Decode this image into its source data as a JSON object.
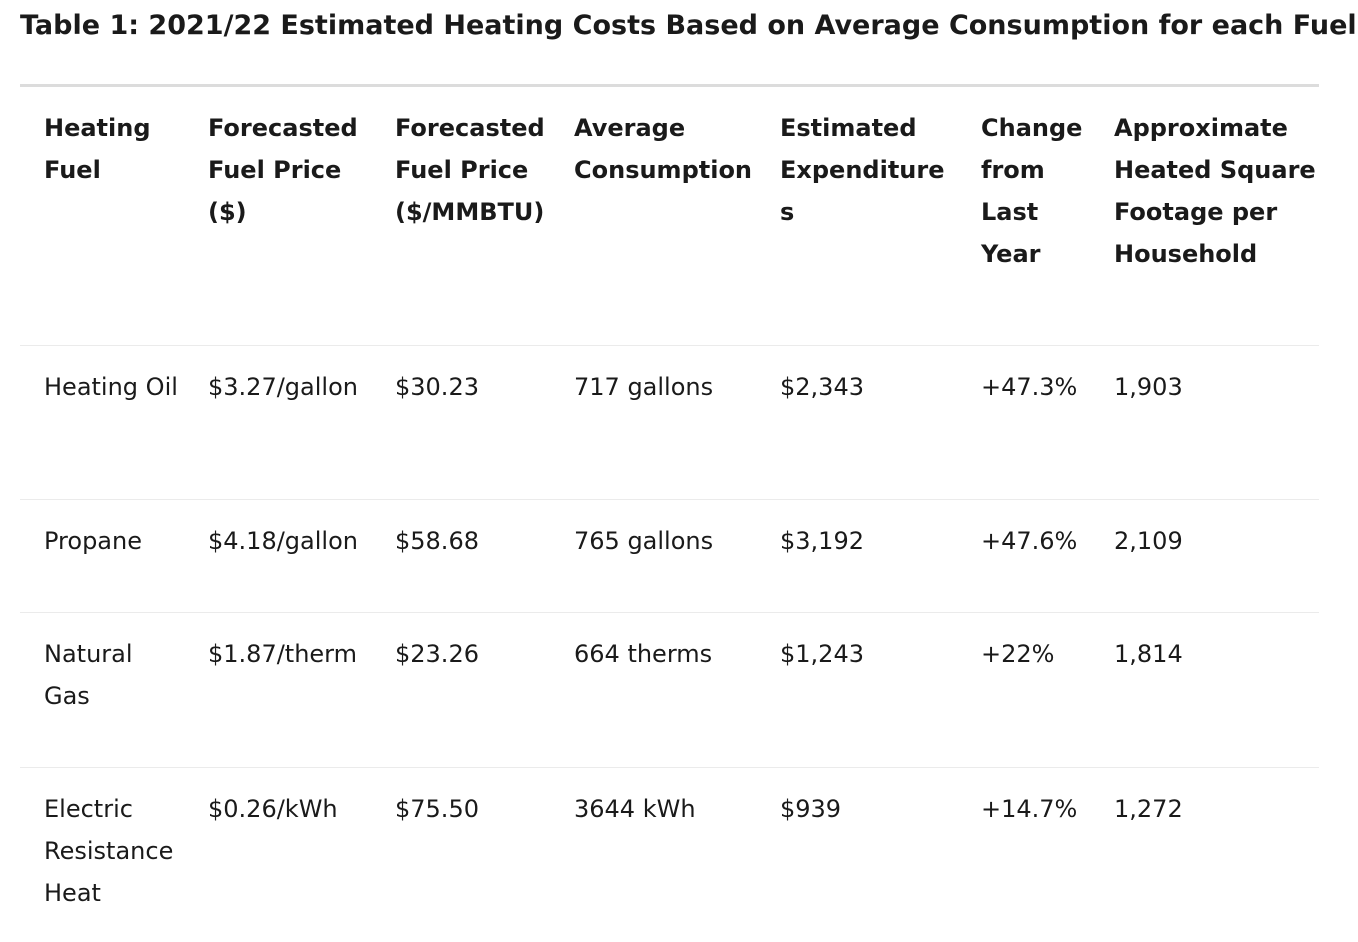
{
  "title": "Table 1: 2021/22 Estimated Heating Costs Based on Average Consumption for each Fuel",
  "table": {
    "headers": [
      "Heating Fuel",
      "Forecasted Fuel Price ($)",
      "Forecasted Fuel Price ($/MMBTU)",
      "Average Consumption",
      "Estimated Expenditures",
      "Change from Last Year",
      "Approximate Heated Square Footage per Household"
    ],
    "rows": [
      [
        "Heating Oil",
        "$3.27/gallon",
        "$30.23",
        "717 gallons",
        "$2,343",
        "+47.3%",
        "1,903"
      ],
      [
        "Propane",
        "$4.18/gallon",
        "$58.68",
        "765 gallons",
        "$3,192",
        "+47.6%",
        "2,109"
      ],
      [
        "Natural Gas",
        "$1.87/therm",
        "$23.26",
        "664 therms",
        "$1,243",
        "+22%",
        "1,814"
      ],
      [
        "Electric Resistance Heat",
        "$0.26/kWh",
        "$75.50",
        "3644 kWh",
        "$939",
        "+14.7%",
        "1,272"
      ]
    ]
  }
}
